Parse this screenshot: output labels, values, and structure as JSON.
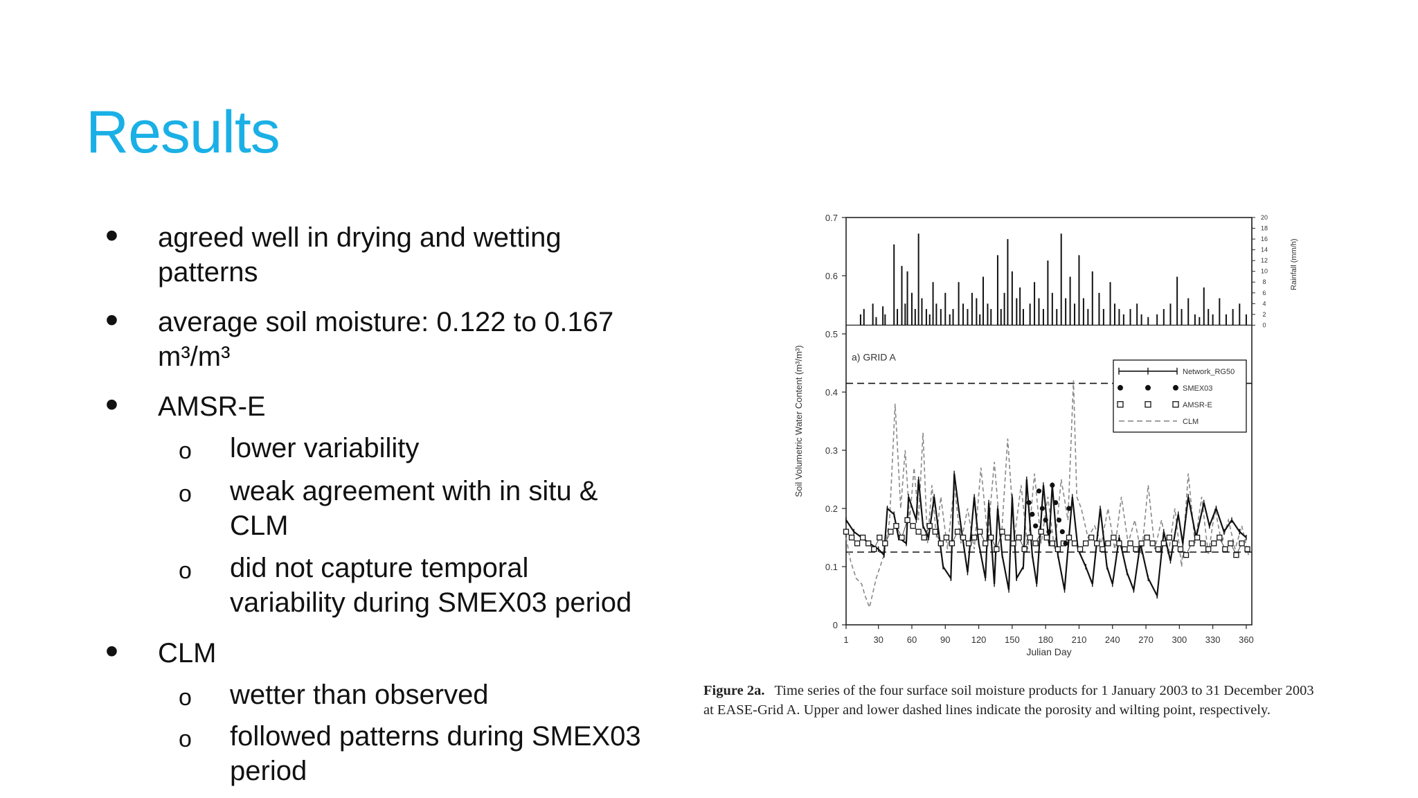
{
  "slide": {
    "title": "Results"
  },
  "bullets": [
    {
      "level": 1,
      "lines": [
        "agreed well in drying and wetting",
        "patterns"
      ]
    },
    {
      "level": 1,
      "lines": [
        "average soil moisture: 0.122 to 0.167",
        "m³/m³"
      ]
    },
    {
      "level": 1,
      "lines": [
        "AMSR-E"
      ]
    },
    {
      "level": 2,
      "lines": [
        "lower variability"
      ]
    },
    {
      "level": 2,
      "lines": [
        "weak agreement with in situ &",
        "CLM"
      ]
    },
    {
      "level": 2,
      "lines": [
        "did not capture temporal",
        "variability during SMEX03 period"
      ]
    },
    {
      "level": 1,
      "lines": [
        "CLM"
      ]
    },
    {
      "level": 2,
      "lines": [
        "wetter than observed"
      ]
    },
    {
      "level": 2,
      "lines": [
        "followed patterns during SMEX03",
        "period"
      ]
    }
  ],
  "markers": {
    "level1": "•",
    "level2": "o"
  },
  "chart_data": {
    "type": "line",
    "panel_label": "a) GRID A",
    "xlabel": "Julian Day",
    "ylabel": "Soil Volumetric Water Content (m³/m³)",
    "y2label": "Rainfall (mm/h)",
    "xlim": [
      1,
      365
    ],
    "ylim": [
      0,
      0.7
    ],
    "y2lim": [
      0,
      20
    ],
    "x_ticks": [
      "1",
      "30",
      "60",
      "90",
      "120",
      "150",
      "180",
      "210",
      "240",
      "270",
      "300",
      "330",
      "360"
    ],
    "x_tick_values": [
      1,
      30,
      60,
      90,
      120,
      150,
      180,
      210,
      240,
      270,
      300,
      330,
      360
    ],
    "y_ticks": [
      "0",
      "0.1",
      "0.2",
      "0.3",
      "0.4",
      "0.5",
      "0.6",
      "0.7"
    ],
    "y_tick_values": [
      0,
      0.1,
      0.2,
      0.3,
      0.4,
      0.5,
      0.6,
      0.7
    ],
    "y2_ticks": [
      "0",
      "2",
      "4",
      "6",
      "8",
      "10",
      "12",
      "14",
      "16",
      "18",
      "20"
    ],
    "y2_tick_values": [
      0,
      2,
      4,
      6,
      8,
      10,
      12,
      14,
      16,
      18,
      20
    ],
    "legend_position": "top-right",
    "legend": [
      "Network_RG50",
      "SMEX03",
      "AMSR-E",
      "CLM"
    ],
    "reference_lines": [
      {
        "y": 0.415
      },
      {
        "y": 0.125
      }
    ],
    "rainfall": {
      "days": [
        14,
        17,
        25,
        28,
        34,
        36,
        44,
        47,
        51,
        54,
        56,
        60,
        63,
        66,
        69,
        73,
        76,
        79,
        82,
        86,
        90,
        94,
        97,
        102,
        106,
        110,
        114,
        118,
        121,
        124,
        128,
        131,
        137,
        140,
        143,
        146,
        150,
        154,
        157,
        160,
        166,
        170,
        174,
        178,
        182,
        186,
        190,
        194,
        198,
        202,
        206,
        210,
        214,
        218,
        222,
        228,
        232,
        238,
        242,
        246,
        250,
        256,
        262,
        266,
        272,
        280,
        286,
        292,
        298,
        302,
        308,
        314,
        318,
        322,
        326,
        330,
        336,
        342,
        348,
        354,
        360
      ],
      "values": [
        2,
        3,
        4,
        1.5,
        3.5,
        2,
        15,
        3,
        11,
        4,
        10,
        6,
        3,
        17,
        5,
        3,
        2,
        8,
        4,
        3,
        6,
        2,
        3,
        8,
        4,
        3,
        6,
        5,
        2,
        9,
        4,
        3,
        13,
        3,
        6,
        16,
        10,
        5,
        7,
        3,
        4,
        8,
        5,
        3,
        12,
        6,
        3,
        17,
        5,
        9,
        4,
        13,
        5,
        3,
        10,
        6,
        3,
        8,
        4,
        3,
        2,
        3,
        4,
        2,
        1.5,
        2,
        3,
        4,
        9,
        3,
        5,
        2,
        1.5,
        7,
        3,
        2,
        5,
        2,
        3,
        4,
        2
      ]
    },
    "series": [
      {
        "name": "Network_RG50",
        "x": [
          1,
          8,
          15,
          22,
          30,
          35,
          38,
          44,
          48,
          55,
          57,
          64,
          66,
          70,
          75,
          80,
          88,
          95,
          98,
          104,
          110,
          116,
          120,
          126,
          129,
          134,
          137,
          141,
          147,
          150,
          154,
          160,
          163,
          168,
          172,
          178,
          183,
          186,
          191,
          197,
          204,
          209,
          216,
          222,
          229,
          235,
          240,
          246,
          253,
          259,
          265,
          272,
          280,
          286,
          292,
          299,
          303,
          308,
          315,
          322,
          327,
          333,
          340,
          347,
          354,
          360
        ],
        "y": [
          0.18,
          0.16,
          0.15,
          0.14,
          0.13,
          0.12,
          0.2,
          0.19,
          0.15,
          0.14,
          0.22,
          0.18,
          0.25,
          0.17,
          0.15,
          0.22,
          0.1,
          0.08,
          0.26,
          0.17,
          0.09,
          0.22,
          0.14,
          0.08,
          0.21,
          0.07,
          0.2,
          0.12,
          0.06,
          0.22,
          0.08,
          0.1,
          0.25,
          0.12,
          0.07,
          0.24,
          0.14,
          0.24,
          0.12,
          0.06,
          0.22,
          0.13,
          0.1,
          0.07,
          0.2,
          0.1,
          0.07,
          0.15,
          0.09,
          0.06,
          0.14,
          0.08,
          0.05,
          0.16,
          0.11,
          0.19,
          0.14,
          0.22,
          0.15,
          0.21,
          0.17,
          0.2,
          0.16,
          0.18,
          0.16,
          0.15
        ]
      },
      {
        "name": "SMEX03",
        "x": [
          165,
          168,
          171,
          174,
          177,
          180,
          183,
          186,
          189,
          192,
          195,
          198,
          201
        ],
        "y": [
          0.21,
          0.19,
          0.17,
          0.23,
          0.2,
          0.18,
          0.16,
          0.24,
          0.21,
          0.18,
          0.16,
          0.14,
          0.2
        ]
      },
      {
        "name": "AMSR-E",
        "x": [
          1,
          6,
          11,
          16,
          21,
          26,
          31,
          36,
          41,
          46,
          51,
          56,
          61,
          66,
          71,
          76,
          81,
          86,
          91,
          96,
          101,
          106,
          111,
          116,
          121,
          126,
          131,
          136,
          141,
          146,
          151,
          156,
          161,
          166,
          171,
          176,
          181,
          186,
          191,
          196,
          201,
          206,
          211,
          216,
          221,
          226,
          231,
          236,
          241,
          246,
          251,
          256,
          261,
          266,
          271,
          276,
          281,
          286,
          291,
          296,
          301,
          306,
          311,
          316,
          321,
          326,
          331,
          336,
          341,
          346,
          351,
          356,
          361
        ],
        "y": [
          0.16,
          0.15,
          0.14,
          0.15,
          0.14,
          0.13,
          0.15,
          0.14,
          0.16,
          0.17,
          0.15,
          0.18,
          0.17,
          0.16,
          0.15,
          0.17,
          0.16,
          0.14,
          0.15,
          0.14,
          0.16,
          0.15,
          0.14,
          0.15,
          0.16,
          0.14,
          0.15,
          0.13,
          0.16,
          0.15,
          0.14,
          0.15,
          0.13,
          0.15,
          0.14,
          0.16,
          0.15,
          0.14,
          0.13,
          0.14,
          0.15,
          0.14,
          0.13,
          0.14,
          0.15,
          0.14,
          0.13,
          0.14,
          0.15,
          0.14,
          0.13,
          0.14,
          0.13,
          0.14,
          0.15,
          0.14,
          0.13,
          0.14,
          0.15,
          0.14,
          0.13,
          0.12,
          0.14,
          0.15,
          0.14,
          0.13,
          0.14,
          0.15,
          0.13,
          0.14,
          0.12,
          0.14,
          0.13
        ]
      },
      {
        "name": "CLM",
        "x": [
          1,
          5,
          10,
          15,
          18,
          22,
          28,
          35,
          40,
          45,
          50,
          54,
          58,
          62,
          66,
          70,
          74,
          78,
          82,
          86,
          92,
          98,
          104,
          110,
          116,
          122,
          128,
          134,
          140,
          146,
          152,
          158,
          164,
          170,
          176,
          182,
          188,
          194,
          200,
          205,
          208,
          212,
          218,
          224,
          230,
          236,
          242,
          248,
          254,
          260,
          266,
          272,
          278,
          284,
          290,
          296,
          302,
          308,
          314,
          320,
          326,
          332,
          338,
          344,
          350,
          356,
          362
        ],
        "y": [
          0.15,
          0.11,
          0.08,
          0.07,
          0.05,
          0.03,
          0.08,
          0.12,
          0.18,
          0.38,
          0.2,
          0.3,
          0.18,
          0.27,
          0.18,
          0.33,
          0.14,
          0.24,
          0.15,
          0.22,
          0.13,
          0.24,
          0.14,
          0.2,
          0.13,
          0.27,
          0.15,
          0.28,
          0.14,
          0.32,
          0.15,
          0.24,
          0.13,
          0.26,
          0.14,
          0.22,
          0.13,
          0.25,
          0.18,
          0.42,
          0.22,
          0.2,
          0.15,
          0.17,
          0.14,
          0.2,
          0.13,
          0.22,
          0.14,
          0.18,
          0.12,
          0.24,
          0.13,
          0.18,
          0.12,
          0.2,
          0.1,
          0.26,
          0.14,
          0.22,
          0.12,
          0.2,
          0.14,
          0.18,
          0.13,
          0.17,
          0.12
        ]
      }
    ],
    "caption_lead": "Figure 2a.",
    "caption_lines": [
      "Time series of the four surface soil moisture products for 1 January 2003 to 31 December 2003",
      "at EASE-Grid A. Upper and lower dashed lines indicate the porosity and wilting point, respectively."
    ]
  }
}
